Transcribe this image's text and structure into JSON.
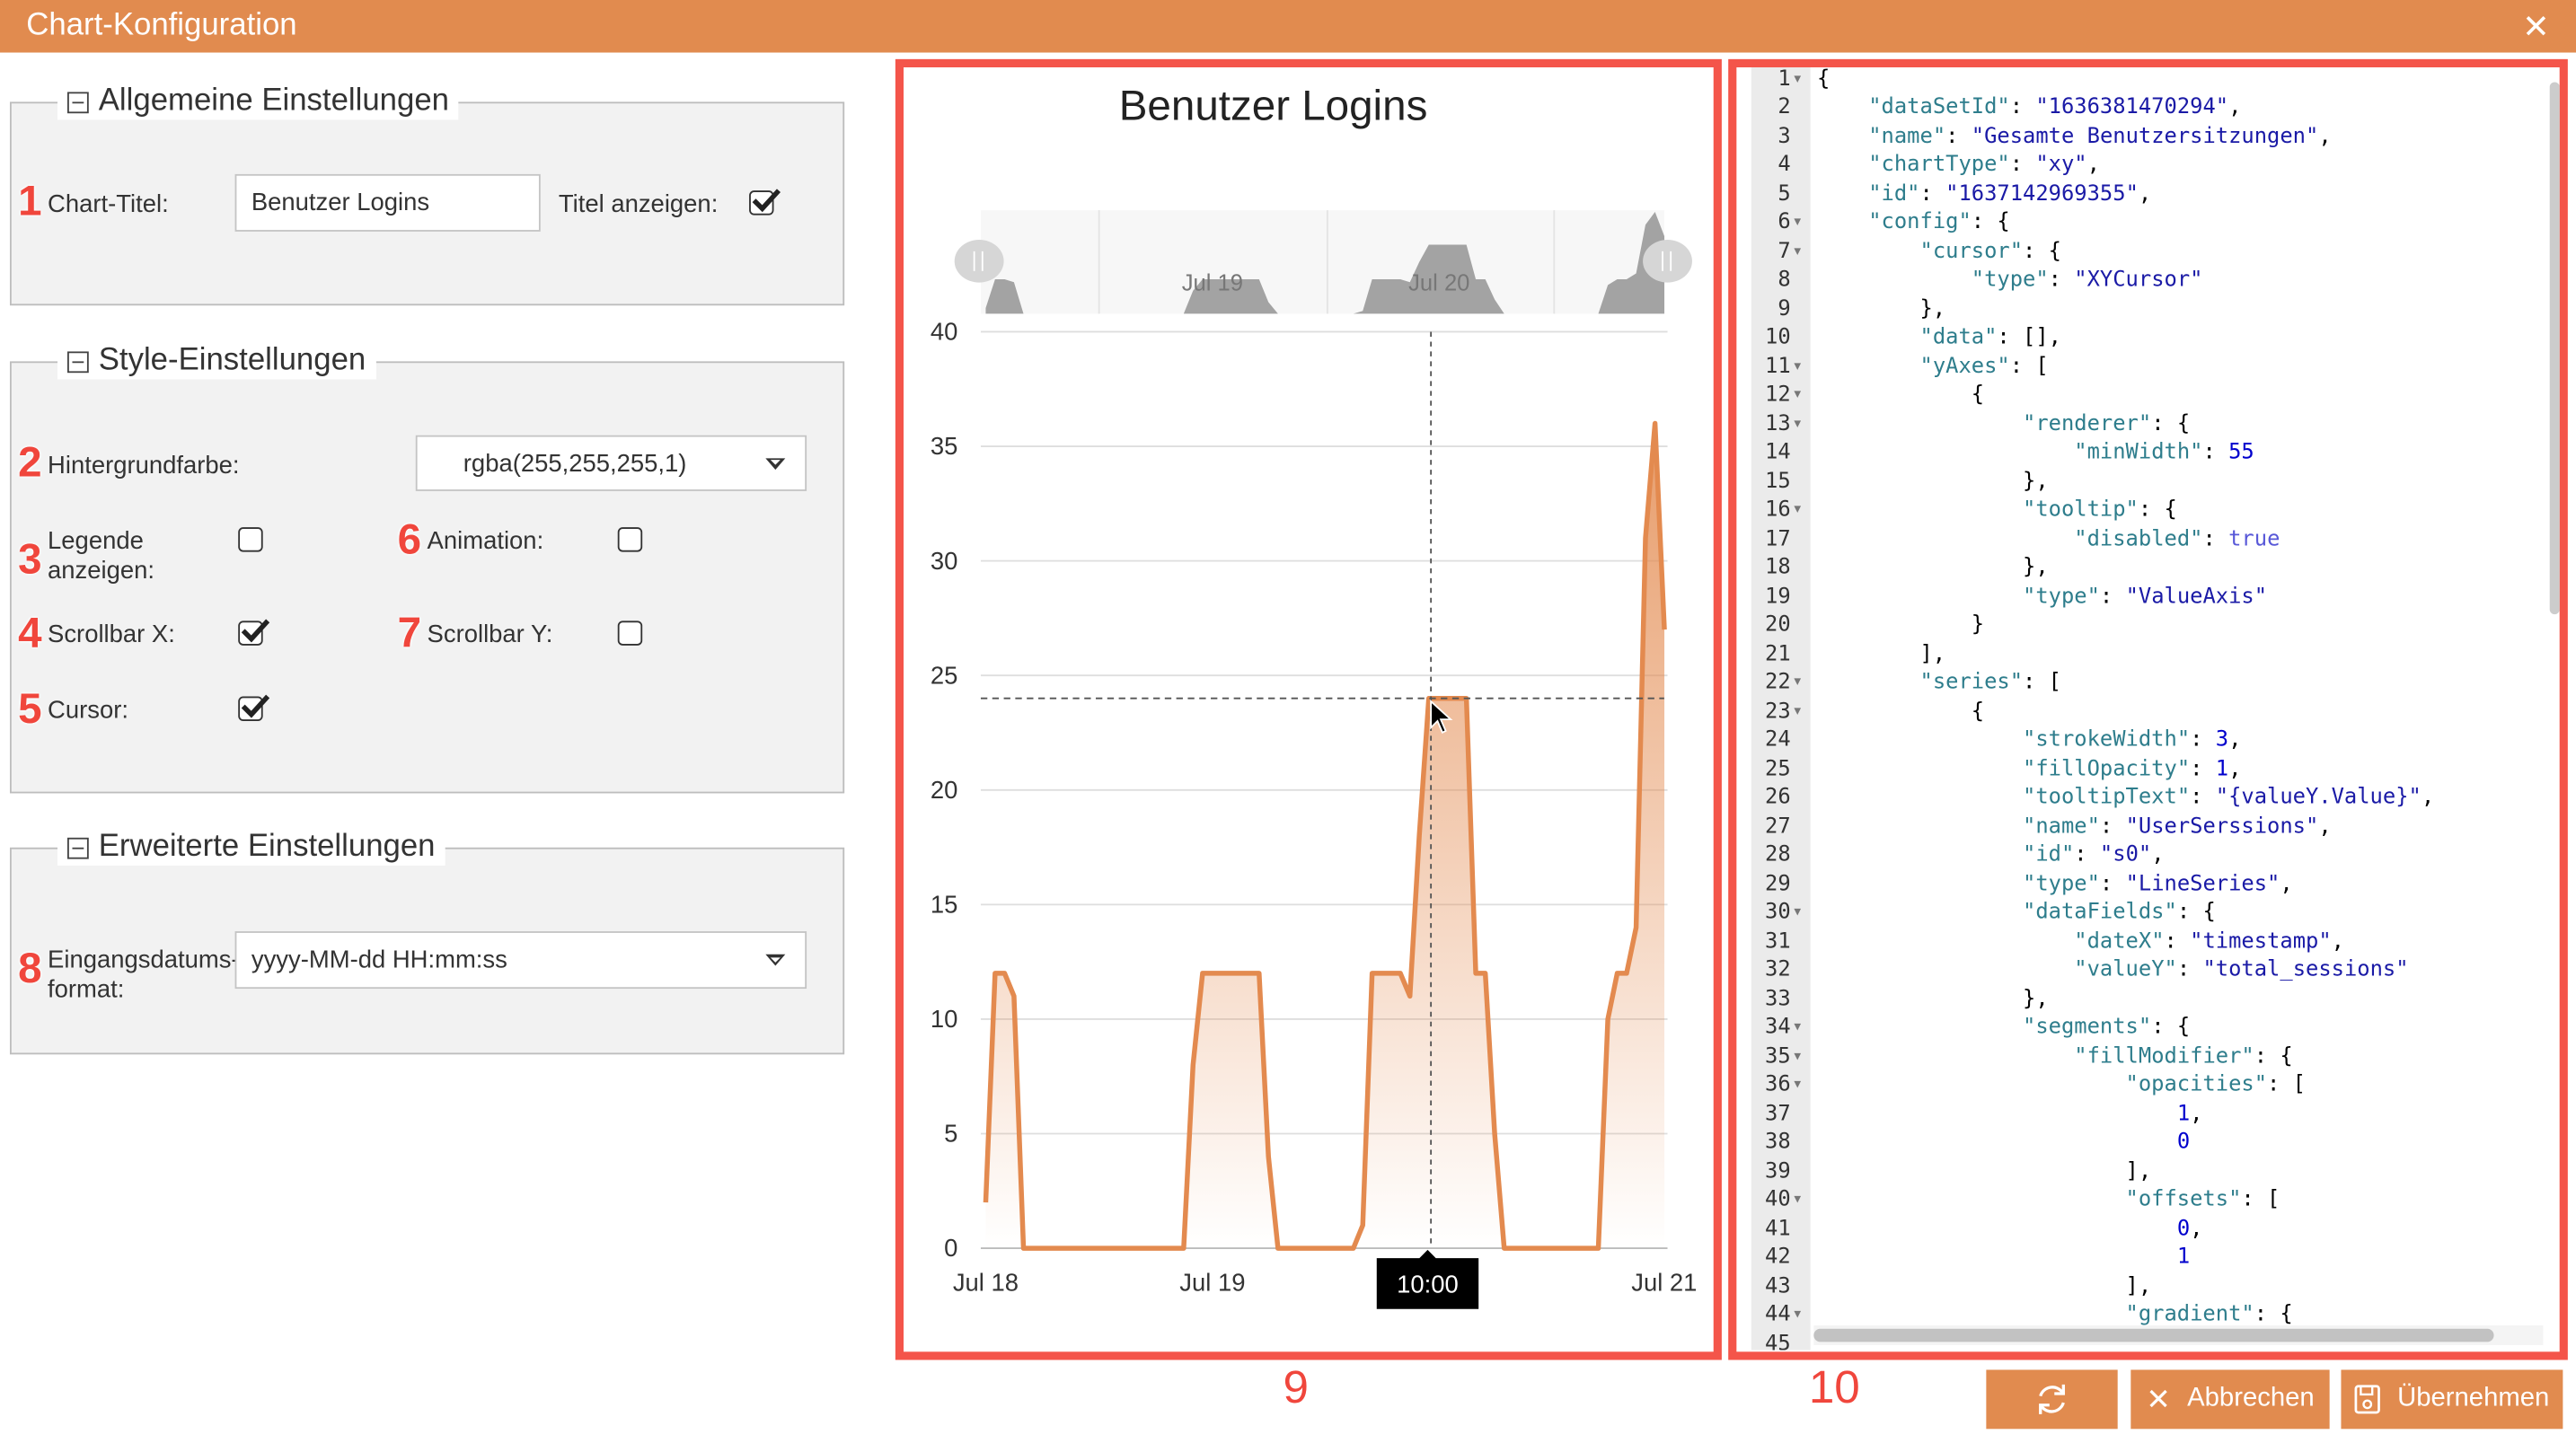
{
  "window": {
    "title": "Chart-Konfiguration",
    "close_icon": "close-icon"
  },
  "general": {
    "legend": "Allgemeine Einstellungen",
    "chart_title_label": "Chart-Titel:",
    "chart_title_value": "Benutzer Logins",
    "show_title_label": "Titel anzeigen:",
    "show_title_checked": true
  },
  "style": {
    "legend": "Style-Einstellungen",
    "background_label": "Hintergrundfarbe:",
    "background_value": "rgba(255,255,255,1)",
    "legend_label": "Legende anzeigen:",
    "legend_checked": false,
    "animation_label": "Animation:",
    "animation_checked": false,
    "scrollbar_x_label": "Scrollbar X:",
    "scrollbar_x_checked": true,
    "scrollbar_y_label": "Scrollbar Y:",
    "scrollbar_y_checked": false,
    "cursor_label": "Cursor:",
    "cursor_checked": true
  },
  "advanced": {
    "legend": "Erweiterte Einstellungen",
    "date_format_label": "Eingangsdatums-format:",
    "date_format_value": "yyyy-MM-dd HH:mm:ss"
  },
  "annotations": [
    "1",
    "2",
    "3",
    "4",
    "5",
    "6",
    "7",
    "8",
    "9",
    "10"
  ],
  "chart_data": {
    "type": "line",
    "title": "Benutzer Logins",
    "fill": "gradient",
    "line_color": "#e38a4f",
    "x": [
      "Jul 18 00:00",
      "Jul 18 01:00",
      "Jul 18 02:00",
      "Jul 18 03:00",
      "Jul 18 04:00",
      "Jul 18 21:00",
      "Jul 18 22:00",
      "Jul 18 23:00",
      "Jul 19 05:00",
      "Jul 19 06:00",
      "Jul 19 07:00",
      "Jul 19 15:00",
      "Jul 19 16:00",
      "Jul 19 17:00",
      "Jul 19 20:00",
      "Jul 19 21:00",
      "Jul 19 22:00",
      "Jul 19 23:00",
      "Jul 20 03:00",
      "Jul 20 04:00",
      "Jul 20 05:00",
      "Jul 20 06:00",
      "Jul 20 07:00",
      "Jul 20 17:00",
      "Jul 20 18:00",
      "Jul 20 19:00",
      "Jul 20 20:00",
      "Jul 20 21:00",
      "Jul 20 22:00",
      "Jul 20 23:00",
      "Jul 21 00:00"
    ],
    "y": [
      2,
      12,
      12,
      11,
      0,
      0,
      8,
      12,
      12,
      4,
      0,
      0,
      1,
      12,
      12,
      11,
      18,
      24,
      24,
      12,
      12,
      5,
      0,
      0,
      10,
      12,
      12,
      14,
      31,
      36,
      27
    ],
    "ylim": [
      0,
      40
    ],
    "yticks": [
      "0",
      "5",
      "10",
      "15",
      "20",
      "25",
      "30",
      "35",
      "40"
    ],
    "xticks": [
      "Jul 18",
      "Jul 19",
      "Jul 21"
    ],
    "grid": true,
    "cursor": {
      "tooltip": "10:00",
      "y_value": 24
    },
    "scrollbar": {
      "labels": [
        "Jul 19",
        "Jul 20"
      ]
    }
  },
  "editor": {
    "lines": [
      "{",
      "    \"dataSetId\": \"1636381470294\",",
      "    \"name\": \"Gesamte Benutzersitzungen\",",
      "    \"chartType\": \"xy\",",
      "    \"id\": \"1637142969355\",",
      "    \"config\": {",
      "        \"cursor\": {",
      "            \"type\": \"XYCursor\"",
      "        },",
      "        \"data\": [],",
      "        \"yAxes\": [",
      "            {",
      "                \"renderer\": {",
      "                    \"minWidth\": 55",
      "                },",
      "                \"tooltip\": {",
      "                    \"disabled\": true",
      "                },",
      "                \"type\": \"ValueAxis\"",
      "            }",
      "        ],",
      "        \"series\": [",
      "            {",
      "                \"strokeWidth\": 3,",
      "                \"fillOpacity\": 1,",
      "                \"tooltipText\": \"{valueY.Value}\",",
      "                \"name\": \"UserSerssions\",",
      "                \"id\": \"s0\",",
      "                \"type\": \"LineSeries\",",
      "                \"dataFields\": {",
      "                    \"dateX\": \"timestamp\",",
      "                    \"valueY\": \"total_sessions\"",
      "                },",
      "                \"segments\": {",
      "                    \"fillModifier\": {",
      "                        \"opacities\": [",
      "                            1,",
      "                            0",
      "                        ],",
      "                        \"offsets\": [",
      "                            0,",
      "                            1",
      "                        ],",
      "                        \"gradient\": {",
      ""
    ],
    "fold_lines": [
      1,
      6,
      7,
      11,
      12,
      13,
      16,
      22,
      23,
      30,
      34,
      35,
      36,
      40,
      44
    ]
  },
  "buttons": {
    "refresh_icon": "refresh-icon",
    "cancel_label": "Abbrechen",
    "apply_label": "Übernehmen"
  },
  "colors": {
    "accent": "#e18b4f",
    "annotation": "#f4554a"
  }
}
